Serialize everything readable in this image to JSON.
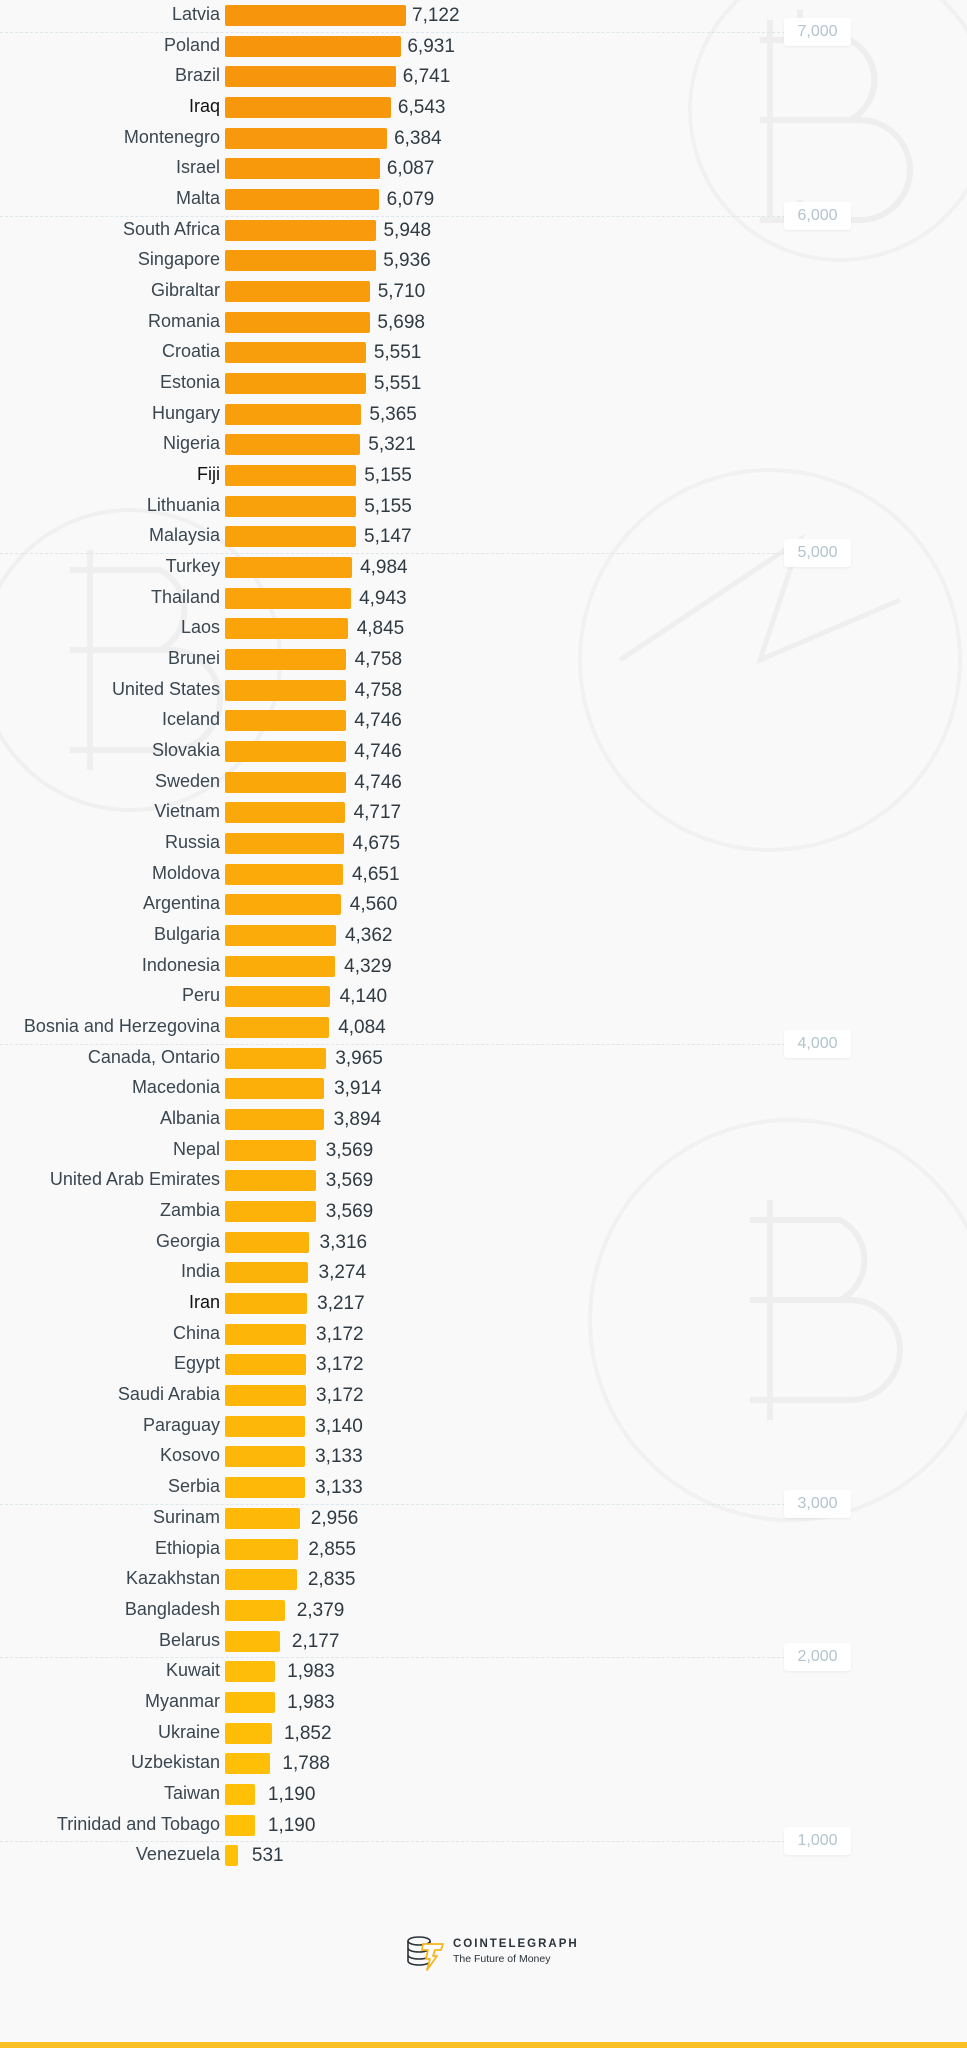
{
  "chart_data": {
    "type": "bar",
    "orientation": "horizontal",
    "title": "",
    "xlabel": "",
    "ylabel": "",
    "xlim": [
      0,
      7500
    ],
    "grid": true,
    "gridline_ticks": [
      7000,
      6000,
      5000,
      4000,
      3000,
      2000,
      1000
    ],
    "gridline_tick_labels": [
      "7,000",
      "6,000",
      "5,000",
      "4,000",
      "3,000",
      "2,000",
      "1,000"
    ],
    "bar_color_start": "#f7950c",
    "bar_color_end": "#ffc107",
    "categories": [
      "Latvia",
      "Poland",
      "Brazil",
      "Iraq",
      "Montenegro",
      "Israel",
      "Malta",
      "South Africa",
      "Singapore",
      "Gibraltar",
      "Romania",
      "Croatia",
      "Estonia",
      "Hungary",
      "Nigeria",
      "Fiji",
      "Lithuania",
      "Malaysia",
      "Turkey",
      "Thailand",
      "Laos",
      "Brunei",
      "United States",
      "Iceland",
      "Slovakia",
      "Sweden",
      "Vietnam",
      "Russia",
      "Moldova",
      "Argentina",
      "Bulgaria",
      "Indonesia",
      "Peru",
      "Bosnia and Herzegovina",
      "Canada, Ontario",
      "Macedonia",
      "Albania",
      "Nepal",
      "United Arab Emirates",
      "Zambia",
      "Georgia",
      "India",
      "Iran",
      "China",
      "Egypt",
      "Saudi Arabia",
      "Paraguay",
      "Kosovo",
      "Serbia",
      "Surinam",
      "Ethiopia",
      "Kazakhstan",
      "Bangladesh",
      "Belarus",
      "Kuwait",
      "Myanmar",
      "Ukraine",
      "Uzbekistan",
      "Taiwan",
      "Trinidad and Tobago",
      "Venezuela"
    ],
    "values": [
      7122,
      6931,
      6741,
      6543,
      6384,
      6087,
      6079,
      5948,
      5936,
      5710,
      5698,
      5551,
      5551,
      5365,
      5321,
      5155,
      5155,
      5147,
      4984,
      4943,
      4845,
      4758,
      4758,
      4746,
      4746,
      4746,
      4717,
      4675,
      4651,
      4560,
      4362,
      4329,
      4140,
      4084,
      3965,
      3914,
      3894,
      3569,
      3569,
      3569,
      3316,
      3274,
      3217,
      3172,
      3172,
      3172,
      3140,
      3133,
      3133,
      2956,
      2855,
      2835,
      2379,
      2177,
      1983,
      1983,
      1852,
      1788,
      1190,
      1190,
      531
    ],
    "value_labels": [
      "7,122",
      "6,931",
      "6,741",
      "6,543",
      "6,384",
      "6,087",
      "6,079",
      "5,948",
      "5,936",
      "5,710",
      "5,698",
      "5,551",
      "5,551",
      "5,365",
      "5,321",
      "5,155",
      "5,155",
      "5,147",
      "4,984",
      "4,943",
      "4,845",
      "4,758",
      "4,758",
      "4,746",
      "4,746",
      "4,746",
      "4,717",
      "4,675",
      "4,651",
      "4,560",
      "4,362",
      "4,329",
      "4,140",
      "4,084",
      "3,965",
      "3,914",
      "3,894",
      "3,569",
      "3,569",
      "3,569",
      "3,316",
      "3,274",
      "3,217",
      "3,172",
      "3,172",
      "3,172",
      "3,140",
      "3,133",
      "3,133",
      "2,956",
      "2,855",
      "2,835",
      "2,379",
      "2,177",
      "1,983",
      "1,983",
      "1,852",
      "1,788",
      "1,190",
      "1,190",
      "531"
    ],
    "highlighted_labels": [
      "Iraq",
      "Fiji",
      "Iran"
    ]
  },
  "footer": {
    "brand": "COINTELEGRAPH",
    "tagline": "The Future of Money",
    "logo_icon": "coin-stack-lightning-icon",
    "strip_color": "#fbbf24"
  }
}
